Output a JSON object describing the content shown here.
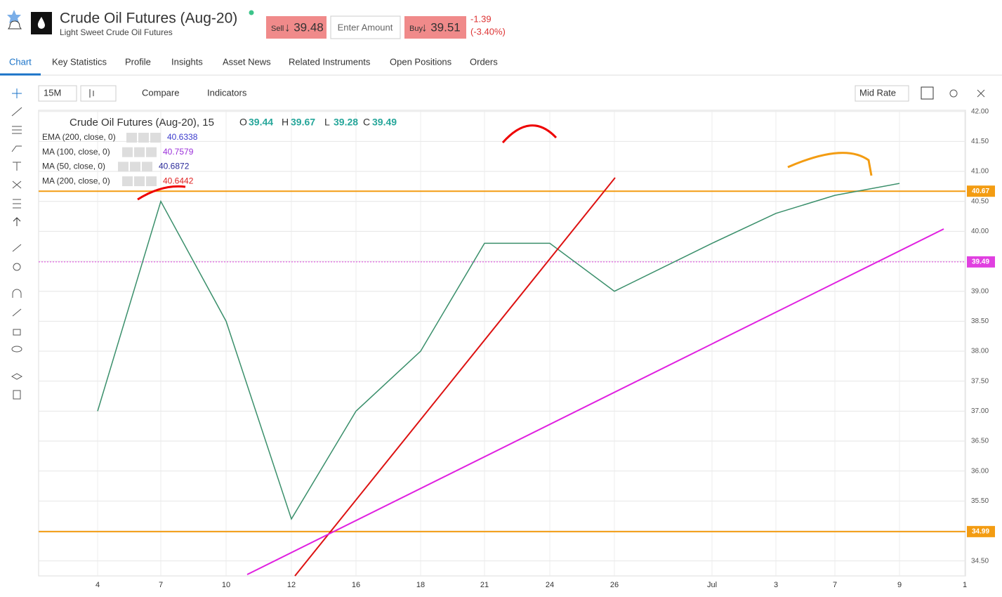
{
  "header": {
    "title": "Crude Oil Futures (Aug-20)",
    "subtitle": "Light Sweet Crude Oil Futures",
    "sell_label": "Sell",
    "sell_price": "↓ 39.48",
    "amount_placeholder": "Enter Amount",
    "buy_label": "Buy",
    "buy_price": "↓ 39.51",
    "change": "-1.39",
    "change_pct": "(-3.40%)"
  },
  "tabs": [
    "Chart",
    "Key Statistics",
    "Profile",
    "Insights",
    "Asset News",
    "Related Instruments",
    "Open Positions",
    "Orders"
  ],
  "toolbar": {
    "interval": "15M",
    "compare": "Compare",
    "indicators": "Indicators",
    "rate": "Mid Rate"
  },
  "chart_data": {
    "type": "line",
    "title": "Crude Oil Futures (Aug-20), 15",
    "ohlc": [
      {
        "label": "O",
        "value": 39.44
      },
      {
        "label": "H",
        "value": 39.67
      },
      {
        "label": "L",
        "value": 39.28
      },
      {
        "label": "C",
        "value": 39.49
      }
    ],
    "indicators": [
      {
        "name": "EMA (200, close, 0)",
        "value": 40.6338,
        "color": "#3a3acc"
      },
      {
        "name": "MA (100, close, 0)",
        "value": 40.7579,
        "color": "#9b30d9"
      },
      {
        "name": "MA (50, close, 0)",
        "value": 40.6872,
        "color": "#2a2a9a"
      },
      {
        "name": "MA (200, close, 0)",
        "value": 40.6442,
        "color": "#e02020"
      }
    ],
    "categories": [
      "4",
      "7",
      "10",
      "12",
      "16",
      "18",
      "21",
      "24",
      "26",
      "Jul",
      "3",
      "7",
      "9",
      "1"
    ],
    "values": [
      37.0,
      40.5,
      38.5,
      35.2,
      37.0,
      38.0,
      39.8,
      39.8,
      39.0,
      39.8,
      40.3,
      40.6,
      40.8,
      null
    ],
    "color": "#3a8f6b",
    "ylim": [
      34.25,
      42.02
    ],
    "yticks": [
      {
        "value": 34.5,
        "label": "34.50"
      },
      {
        "value": 35,
        "label": "35.00"
      },
      {
        "value": 35.5,
        "label": "35.50"
      },
      {
        "value": 36,
        "label": "36.00"
      },
      {
        "value": 36.5,
        "label": "36.50"
      },
      {
        "value": 37,
        "label": "37.00"
      },
      {
        "value": 37.5,
        "label": "37.50"
      },
      {
        "value": 38,
        "label": "38.00"
      },
      {
        "value": 38.5,
        "label": "38.50"
      },
      {
        "value": 39,
        "label": "39.00"
      },
      {
        "value": 39.5,
        "label": "39.50"
      },
      {
        "value": 40,
        "label": "40.00"
      },
      {
        "value": 40.5,
        "label": "40.50"
      },
      {
        "value": 41,
        "label": "41.00"
      },
      {
        "value": 41.5,
        "label": "41.50"
      },
      {
        "value": 42,
        "label": "42.00"
      }
    ],
    "grid": true,
    "levels": [
      {
        "value": 40.67,
        "color": "#f39c12"
      },
      {
        "value": 34.99,
        "color": "#f39c12"
      },
      {
        "value": 39.49,
        "color": "#e040e0"
      }
    ]
  }
}
